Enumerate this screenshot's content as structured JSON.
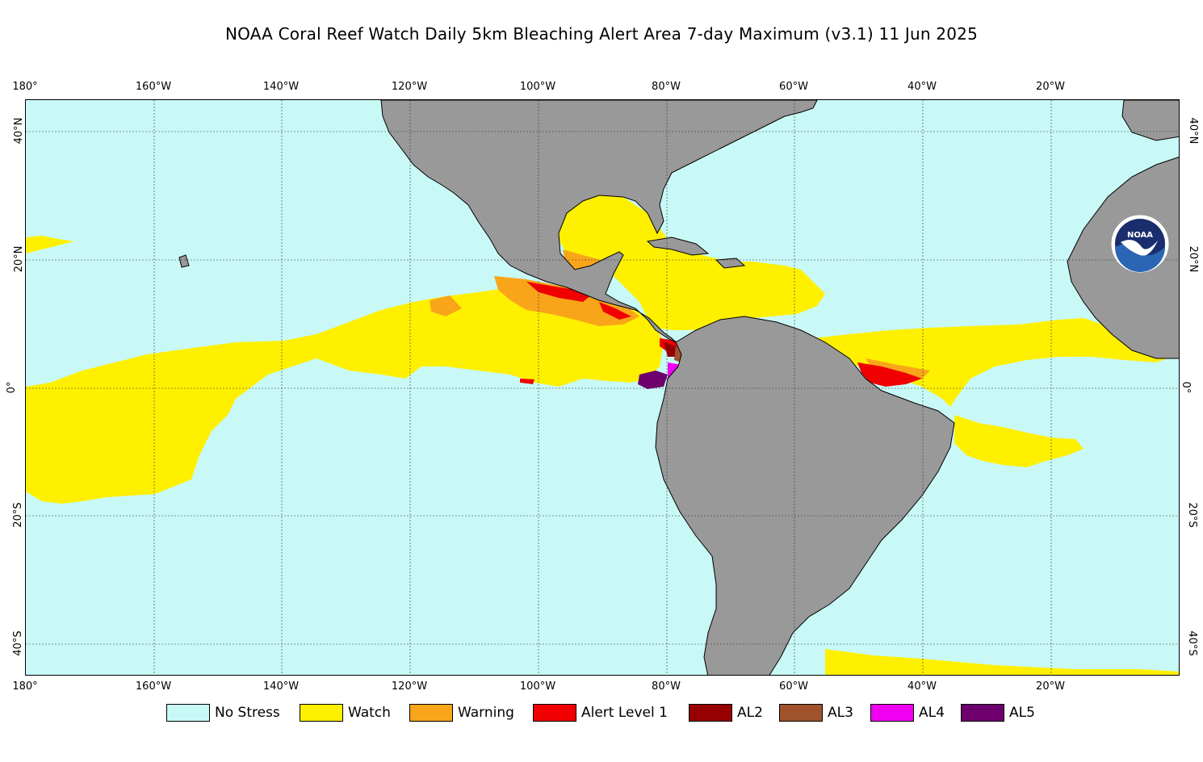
{
  "title": "NOAA Coral Reef Watch Daily 5km Bleaching Alert Area 7-day Maximum  (v3.1)   11 Jun 2025",
  "longitude_ticks": [
    "180°",
    "160°W",
    "140°W",
    "120°W",
    "100°W",
    "80°W",
    "60°W",
    "40°W",
    "20°W"
  ],
  "latitude_ticks_left": [
    "40°N",
    "20°N",
    "0°",
    "20°S",
    "40°S"
  ],
  "latitude_ticks_right": [
    "40°N",
    "20°N",
    "0°",
    "20°S",
    "40°S"
  ],
  "legend": [
    {
      "label": "No Stress",
      "color": "#c8f9f7"
    },
    {
      "label": "Watch",
      "color": "#fff000"
    },
    {
      "label": "Warning",
      "color": "#f9a51a"
    },
    {
      "label": "Alert Level 1",
      "color": "#f00000"
    },
    {
      "label": "AL2",
      "color": "#960000"
    },
    {
      "label": "AL3",
      "color": "#a0522d"
    },
    {
      "label": "AL4",
      "color": "#f000f0"
    },
    {
      "label": "AL5",
      "color": "#6e006e"
    }
  ],
  "colors": {
    "ocean": "#c8f9f7",
    "land": "#999999",
    "grid": "#333333"
  },
  "logo": {
    "text": "NOAA",
    "icon": "noaa-logo-icon"
  }
}
